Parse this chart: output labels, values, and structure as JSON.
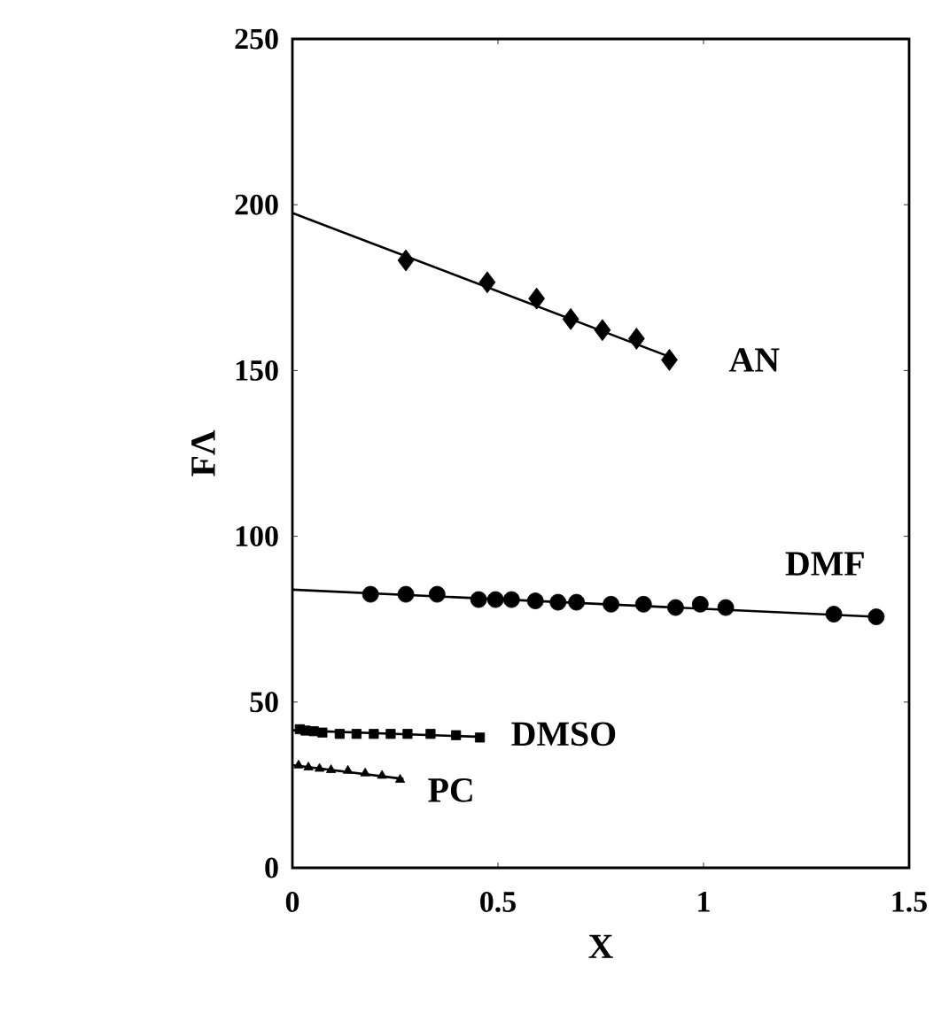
{
  "chart_data": {
    "type": "scatter",
    "xlabel": "X",
    "ylabel": "FΛ",
    "xlim": [
      0,
      1.5
    ],
    "ylim": [
      0,
      250
    ],
    "xticks": [
      0,
      0.5,
      1,
      1.5
    ],
    "yticks": [
      0,
      50,
      100,
      150,
      200,
      250
    ],
    "grid": false,
    "series": [
      {
        "name": "AN",
        "color": "#000000",
        "marker": "diamond",
        "x": [
          0.276,
          0.474,
          0.594,
          0.677,
          0.754,
          0.837,
          0.917
        ],
        "values": [
          183.2,
          176.6,
          171.7,
          165.5,
          162.2,
          159.6,
          153.2
        ]
      },
      {
        "type": "line",
        "color": "#000000",
        "marker": "none",
        "x": [
          0,
          0.92
        ],
        "values": [
          197.5,
          154
        ]
      },
      {
        "name": "DMF",
        "color": "#000000",
        "marker": "circle",
        "x": [
          0.19,
          0.276,
          0.352,
          0.453,
          0.494,
          0.533,
          0.591,
          0.646,
          0.691,
          0.775,
          0.854,
          0.932,
          0.992,
          1.054,
          1.317,
          1.42
        ],
        "values": [
          82.5,
          82.5,
          82.5,
          80.9,
          80.9,
          80.9,
          80.5,
          80.1,
          80.1,
          79.5,
          79.5,
          78.5,
          79.5,
          78.5,
          76.5,
          75.7
        ]
      },
      {
        "type": "line",
        "color": "#000000",
        "marker": "none",
        "x": [
          0,
          1.42
        ],
        "values": [
          83.9,
          75.7
        ]
      },
      {
        "name": "DMSO",
        "color": "#000000",
        "marker": "square",
        "x": [
          0.018,
          0.032,
          0.052,
          0.073,
          0.115,
          0.156,
          0.198,
          0.239,
          0.28,
          0.336,
          0.398,
          0.456
        ],
        "values": [
          41.8,
          41.4,
          41.2,
          40.8,
          40.4,
          40.4,
          40.4,
          40.4,
          40.4,
          40.4,
          40.0,
          39.3
        ]
      },
      {
        "type": "line",
        "color": "#000000",
        "marker": "none",
        "x": [
          0,
          0.46
        ],
        "values": [
          41.5,
          39.5
        ]
      },
      {
        "name": "PC",
        "color": "#000000",
        "marker": "triangle",
        "x": [
          0.015,
          0.039,
          0.066,
          0.094,
          0.135,
          0.177,
          0.218,
          0.262
        ],
        "values": [
          30.9,
          30.3,
          29.9,
          29.5,
          29.3,
          28.5,
          27.8,
          26.6
        ]
      },
      {
        "type": "line",
        "color": "#000000",
        "marker": "none",
        "x": [
          0,
          0.27
        ],
        "values": [
          31,
          26.8
        ]
      }
    ]
  }
}
